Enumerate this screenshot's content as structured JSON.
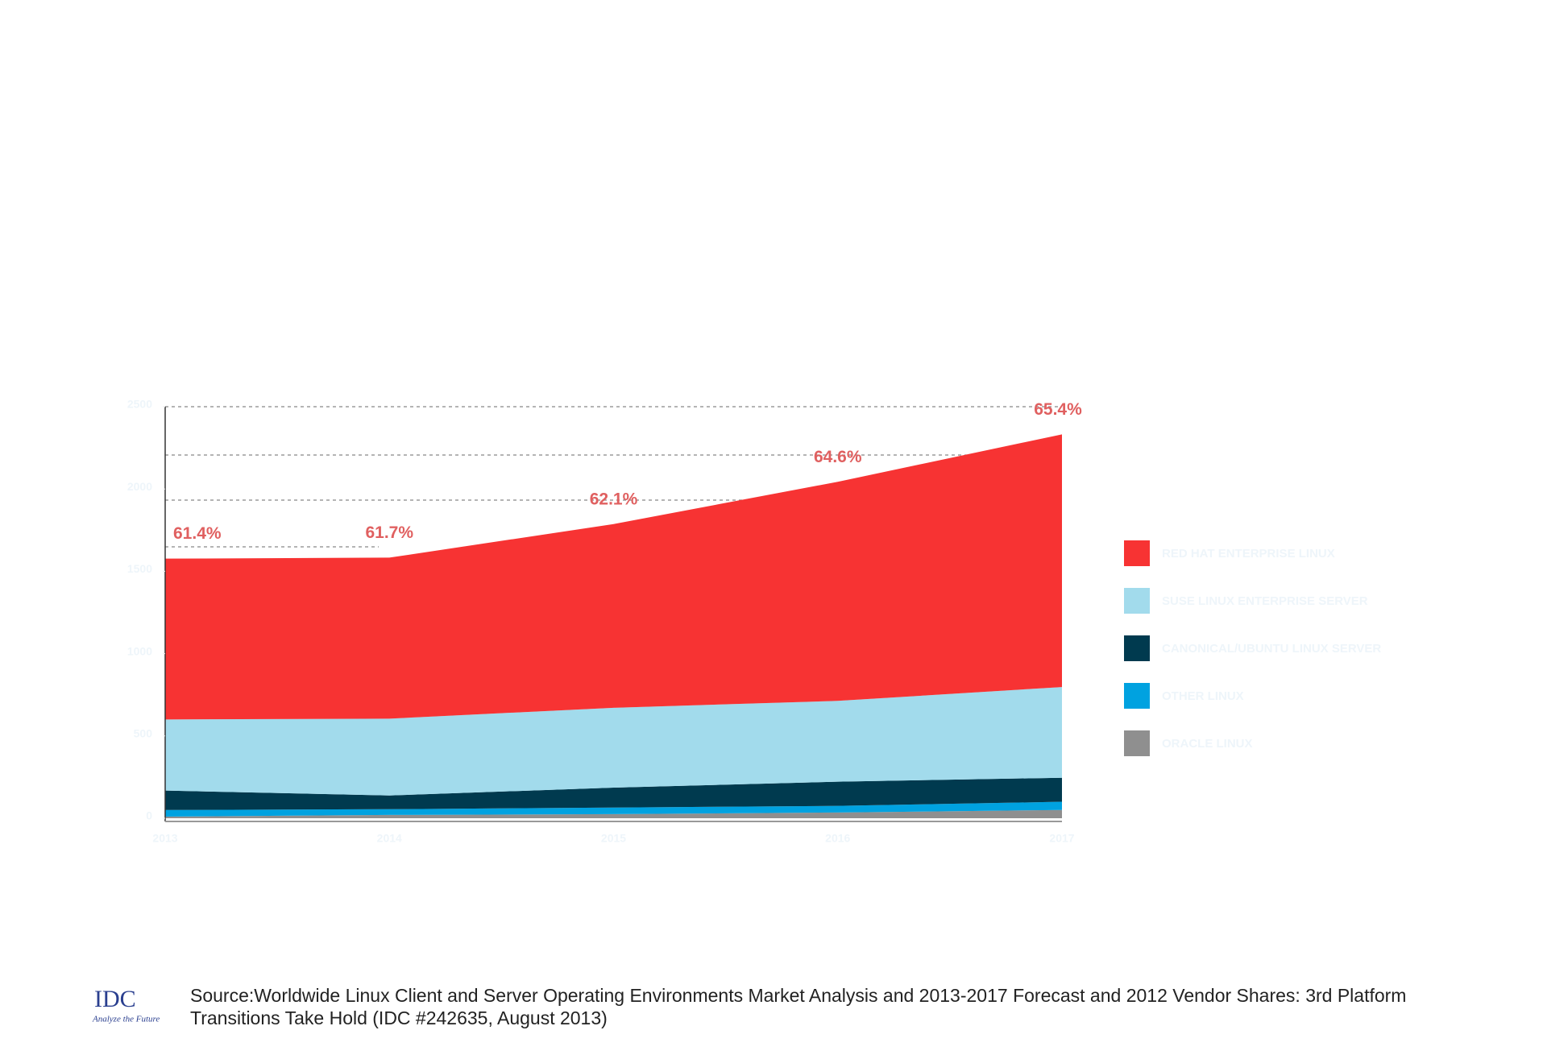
{
  "chart_data": {
    "type": "stacked_area",
    "categories": [
      "2013",
      "2014",
      "2015",
      "2016",
      "2017"
    ],
    "series": [
      {
        "name": "ORACLE LINUX",
        "color": "#8f8f8f",
        "values": [
          10,
          20,
          25,
          35,
          50
        ]
      },
      {
        "name": "OTHER LINUX",
        "color": "#00a2e0",
        "values": [
          40,
          35,
          40,
          40,
          50
        ]
      },
      {
        "name": "CANONICAL/UBUNTU LINUX SERVER",
        "color": "#003a4f",
        "values": [
          118,
          83,
          121,
          147,
          146
        ]
      },
      {
        "name": "SUSE LINUX ENTERPRISE SERVER",
        "color": "#a2dbec",
        "values": [
          432,
          467,
          485,
          491,
          551
        ]
      },
      {
        "name": "RED HAT ENTERPRISE LINUX",
        "color": "#f73333",
        "values": [
          977,
          978,
          1116,
          1331,
          1535
        ]
      }
    ],
    "annotations": [
      "61.4%",
      "61.7%",
      "62.1%",
      "64.6%",
      "65.4%"
    ],
    "ylim": [
      0,
      2500
    ],
    "yticks": [
      0,
      500,
      1000,
      1500,
      2000,
      2500
    ]
  },
  "footer": {
    "logo": "IDC",
    "tagline": "Analyze the Future",
    "source": "Source:Worldwide Linux Client and Server Operating Environments Market Analysis and 2013-2017 Forecast and 2012 Vendor Shares: 3rd Platform Transitions Take Hold (IDC #242635, August 2013)"
  }
}
